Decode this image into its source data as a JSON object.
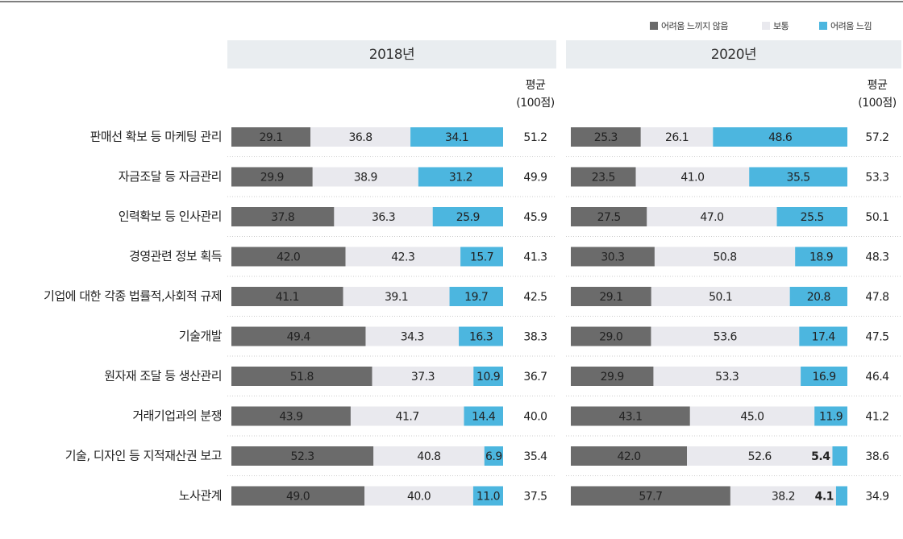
{
  "chart_data": {
    "type": "bar",
    "categories": [
      "판매선 확보 등 마케팅 관리",
      "자금조달 등 자금관리",
      "인력확보 등 인사관리",
      "경영관련 정보 획득",
      "기업에 대한 각종 법률적,사회적 규제",
      "기술개발",
      "원자재 조달 등 생산관리",
      "거래기업과의 분쟁",
      "기술, 디자인 등 지적재산권 보고",
      "노사관계"
    ],
    "legend": [
      {
        "name": "어려움 느끼지 않음",
        "color": "#6b6b6b"
      },
      {
        "name": "보통",
        "color": "#e9e9ee"
      },
      {
        "name": "어려움 느낌",
        "color": "#4cb6df"
      }
    ],
    "panels": [
      {
        "title": "2018년",
        "average_label": "평균",
        "average_unit": "(100점)",
        "series": [
          {
            "values": [
              29.1,
              29.9,
              37.8,
              42.0,
              41.1,
              49.4,
              51.8,
              43.9,
              52.3,
              49.0
            ],
            "value_labels": [
              "29.1",
              "29.9",
              "37.8",
              "42.0",
              "41.1",
              "49.4",
              "51.8",
              "43.9",
              "52.3",
              "49.0"
            ]
          },
          {
            "values": [
              36.8,
              38.9,
              36.3,
              42.3,
              39.1,
              34.3,
              37.3,
              41.7,
              40.8,
              40.0
            ],
            "value_labels": [
              "36.8",
              "38.9",
              "36.3",
              "42.3",
              "39.1",
              "34.3",
              "37.3",
              "41.7",
              "40.8",
              "40.0"
            ]
          },
          {
            "values": [
              34.1,
              31.2,
              25.9,
              15.7,
              19.7,
              16.3,
              10.9,
              14.4,
              6.9,
              11.0
            ],
            "value_labels": [
              "34.1",
              "31.2",
              "25.9",
              "15.7",
              "19.7",
              "16.3",
              "10.9",
              "14.4",
              "6.9",
              "11.0"
            ]
          }
        ],
        "averages": [
          51.2,
          49.9,
          45.9,
          41.3,
          42.5,
          38.3,
          36.7,
          40.0,
          35.4,
          37.5
        ],
        "average_labels": [
          "51.2",
          "49.9",
          "45.9",
          "41.3",
          "42.5",
          "38.3",
          "36.7",
          "40.0",
          "35.4",
          "37.5"
        ]
      },
      {
        "title": "2020년",
        "average_label": "평균",
        "average_unit": "(100점)",
        "series": [
          {
            "values": [
              25.3,
              23.5,
              27.5,
              30.3,
              29.1,
              29.0,
              29.9,
              43.1,
              42.0,
              57.7
            ],
            "value_labels": [
              "25.3",
              "23.5",
              "27.5",
              "30.3",
              "29.1",
              "29.0",
              "29.9",
              "43.1",
              "42.0",
              "57.7"
            ]
          },
          {
            "values": [
              26.1,
              41.0,
              47.0,
              50.8,
              50.1,
              53.6,
              53.3,
              45.0,
              52.6,
              38.2
            ],
            "value_labels": [
              "26.1",
              "41.0",
              "47.0",
              "50.8",
              "50.1",
              "53.6",
              "53.3",
              "45.0",
              "52.6",
              "38.2"
            ]
          },
          {
            "values": [
              48.6,
              35.5,
              25.5,
              18.9,
              20.8,
              17.4,
              16.9,
              11.9,
              5.4,
              4.1
            ],
            "value_labels": [
              "48.6",
              "35.5",
              "25.5",
              "18.9",
              "20.8",
              "17.4",
              "16.9",
              "11.9",
              "5.4",
              "4.1"
            ]
          }
        ],
        "averages": [
          57.2,
          53.3,
          50.1,
          48.3,
          47.8,
          47.5,
          46.4,
          41.2,
          38.6,
          34.9
        ],
        "average_labels": [
          "57.2",
          "53.3",
          "50.1",
          "48.3",
          "47.8",
          "47.5",
          "46.4",
          "41.2",
          "38.6",
          "34.9"
        ]
      }
    ]
  }
}
